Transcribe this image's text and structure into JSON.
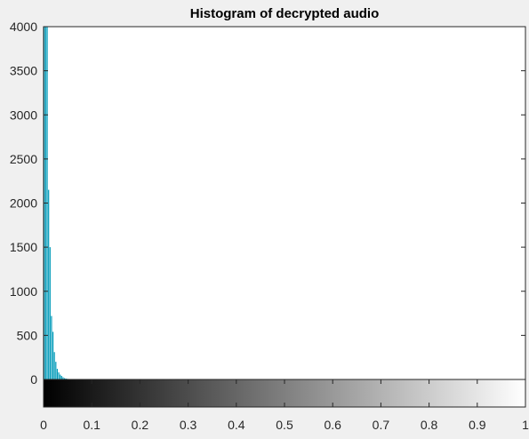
{
  "chart_data": {
    "type": "bar",
    "title": "Histogram of decrypted audio",
    "xlabel": "",
    "ylabel": "",
    "grid": false,
    "legend": "none",
    "bar_color": "#009ab8",
    "colorbar": {
      "colormap": "gray",
      "range": [
        0,
        1
      ],
      "ticks": [
        0,
        0.1,
        0.2,
        0.3,
        0.4,
        0.5,
        0.6,
        0.7,
        0.8,
        0.9,
        1
      ],
      "tick_labels": [
        "0",
        "0.1",
        "0.2",
        "0.3",
        "0.4",
        "0.5",
        "0.6",
        "0.7",
        "0.8",
        "0.9",
        "1"
      ]
    },
    "xlim": [
      0,
      1
    ],
    "ylim": [
      -300,
      4000
    ],
    "yticks": [
      0,
      500,
      1000,
      1500,
      2000,
      2500,
      3000,
      3500,
      4000
    ],
    "ytick_labels": [
      "0",
      "500",
      "1000",
      "1500",
      "2000",
      "2500",
      "3000",
      "3500",
      "4000"
    ],
    "bin_width": 0.003,
    "bin_centers": [
      0.0015,
      0.0045,
      0.0075,
      0.0105,
      0.0135,
      0.0165,
      0.0195,
      0.0225,
      0.0255,
      0.0285,
      0.0315,
      0.0345,
      0.0375,
      0.0405,
      0.0435,
      0.0465,
      0.0495,
      0.0525,
      0.0555,
      0.0585
    ],
    "counts": [
      4000,
      4000,
      4000,
      2150,
      1500,
      720,
      540,
      310,
      200,
      120,
      80,
      55,
      40,
      25,
      15,
      10,
      7,
      4,
      2,
      1
    ]
  }
}
